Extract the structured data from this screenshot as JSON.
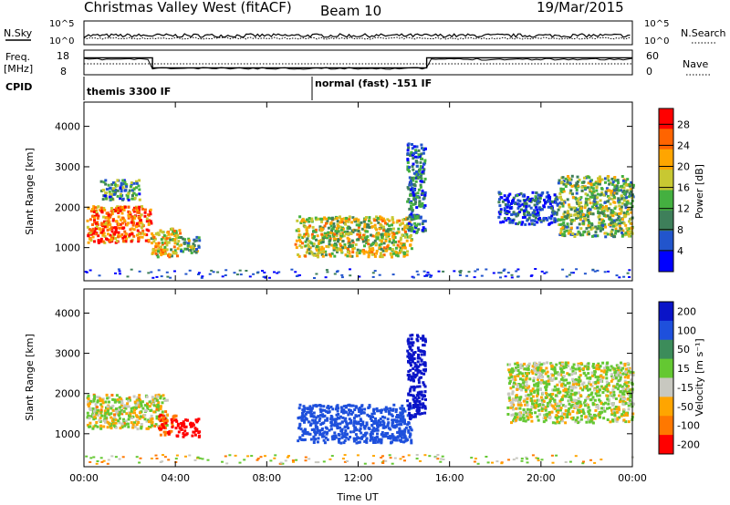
{
  "header": {
    "station": "Christmas Valley West (fitACF)",
    "beam": "Beam 10",
    "date": "19/Mar/2015"
  },
  "chart_data": [
    {
      "panel": "noise",
      "type": "line",
      "left_label": "N.Sky",
      "left_ticks": [
        "10^5",
        "10^0"
      ],
      "right_label": "N.Search",
      "right_ticks": [
        "10^5",
        "10^0"
      ]
    },
    {
      "panel": "frequency",
      "type": "line",
      "left_label_1": "Freq.",
      "left_label_2": "[MHz]",
      "left_ticks": [
        "18",
        "8"
      ],
      "right_label": "Nave",
      "right_ticks": [
        "60",
        "0"
      ],
      "freq_segments": [
        {
          "from_h": 0.0,
          "to_h": 3.0,
          "mhz": 14.9
        },
        {
          "from_h": 3.0,
          "to_h": 15.0,
          "mhz": 10.8
        },
        {
          "from_h": 15.0,
          "to_h": 24.0,
          "mhz": 14.9
        }
      ]
    },
    {
      "panel": "cpid",
      "label": "CPID",
      "segments": [
        {
          "from_h": 0.0,
          "to_h": 10.0,
          "name": "themis 3300 IF"
        },
        {
          "from_h": 10.0,
          "to_h": 24.0,
          "name": "normal (fast) -151 IF"
        }
      ]
    },
    {
      "panel": "power",
      "type": "heatmap",
      "ylabel": "Slant Range [km]",
      "ylim": [
        180,
        4600
      ],
      "yticks": [
        1000,
        2000,
        3000,
        4000
      ],
      "colorbar_label": "Power [dB]",
      "colorbar_ticks": [
        4,
        8,
        12,
        16,
        20,
        24,
        28
      ],
      "colorbar_range": [
        0,
        31
      ],
      "colors": [
        "#0000ff",
        "#2255cc",
        "#3e7f5a",
        "#44b040",
        "#c8c832",
        "#ffa500",
        "#ff6400",
        "#ff0000"
      ],
      "patches": [
        {
          "t0": 0.1,
          "t1": 2.9,
          "r0": 1150,
          "r1": 2050,
          "level": 0.82
        },
        {
          "t0": 2.9,
          "t1": 4.2,
          "r0": 800,
          "r1": 1500,
          "level": 0.6
        },
        {
          "t0": 4.2,
          "t1": 5.0,
          "r0": 900,
          "r1": 1300,
          "level": 0.4
        },
        {
          "t0": 0.7,
          "t1": 2.4,
          "r0": 2200,
          "r1": 2700,
          "level": 0.35
        },
        {
          "t0": 9.2,
          "t1": 14.3,
          "r0": 800,
          "r1": 1800,
          "level": 0.55
        },
        {
          "t0": 14.1,
          "t1": 14.9,
          "r0": 1400,
          "r1": 3600,
          "level": 0.25
        },
        {
          "t0": 18.1,
          "t1": 20.7,
          "r0": 1600,
          "r1": 2400,
          "level": 0.15
        },
        {
          "t0": 20.7,
          "t1": 24.0,
          "r0": 1300,
          "r1": 2800,
          "level": 0.45
        }
      ]
    },
    {
      "panel": "velocity",
      "type": "heatmap",
      "xlabel": "Time UT",
      "ylabel": "Slant Range [km]",
      "ylim": [
        180,
        4600
      ],
      "yticks": [
        1000,
        2000,
        3000,
        4000
      ],
      "xticks": [
        "00:00",
        "04:00",
        "08:00",
        "12:00",
        "16:00",
        "20:00",
        "00:00"
      ],
      "xlim_h": [
        0,
        24
      ],
      "colorbar_label": "Velocity [m s⁻¹]",
      "colorbar_ticks": [
        "200",
        "100",
        "50",
        "15",
        "-15",
        "-50",
        "-100",
        "-200"
      ],
      "colors": [
        "#0a14c8",
        "#1e50dc",
        "#3c8c5a",
        "#64c832",
        "#c8c8c0",
        "#ffa500",
        "#ff7800",
        "#ff0000"
      ],
      "patches": [
        {
          "t0": 0.1,
          "t1": 3.6,
          "r0": 1150,
          "r1": 2000,
          "v": -5
        },
        {
          "t0": 3.2,
          "t1": 4.0,
          "r0": 1000,
          "r1": 1500,
          "v": -70
        },
        {
          "t0": 4.0,
          "t1": 5.0,
          "r0": 950,
          "r1": 1400,
          "v": -210
        },
        {
          "t0": 9.3,
          "t1": 14.3,
          "r0": 800,
          "r1": 1750,
          "v": 120
        },
        {
          "t0": 14.1,
          "t1": 14.9,
          "r0": 1400,
          "r1": 3500,
          "v": 180
        },
        {
          "t0": 18.5,
          "t1": 24.0,
          "r0": 1300,
          "r1": 2800,
          "v": 0
        }
      ]
    }
  ]
}
